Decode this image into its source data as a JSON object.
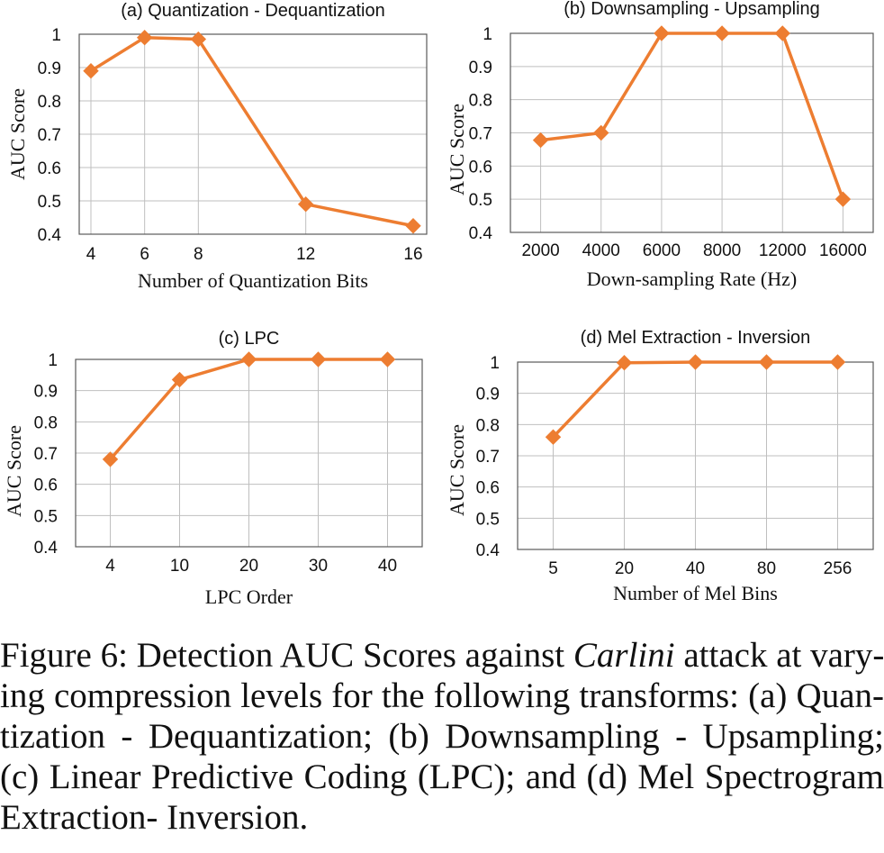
{
  "colors": {
    "series": "#ED7D31",
    "grid": "#BFBFBF",
    "axis": "#595959",
    "text": "#111111"
  },
  "chart_data": [
    {
      "type": "line",
      "title": "(a) Quantization - Dequantization",
      "xlabel": "Number of Quantization Bits",
      "ylabel": "AUC Score",
      "x": [
        4,
        6,
        8,
        12,
        16
      ],
      "x_scale": "numeric",
      "xlim": [
        4,
        16
      ],
      "y": [
        0.89,
        0.99,
        0.985,
        0.49,
        0.425
      ],
      "ylim": [
        0.4,
        1
      ],
      "yticks": [
        "0.4",
        "0.5",
        "0.6",
        "0.7",
        "0.8",
        "0.9",
        "1"
      ],
      "grid": "horizontal and vertical",
      "legend": "none"
    },
    {
      "type": "line",
      "title": "(b) Downsampling - Upsampling",
      "xlabel": "Down-sampling Rate (Hz)",
      "ylabel": "AUC Score",
      "categories": [
        "2000",
        "4000",
        "6000",
        "8000",
        "12000",
        "16000"
      ],
      "y": [
        0.678,
        0.7,
        1.0,
        1.0,
        1.0,
        0.5
      ],
      "ylim": [
        0.4,
        1
      ],
      "yticks": [
        "0.4",
        "0.5",
        "0.6",
        "0.7",
        "0.8",
        "0.9",
        "1"
      ],
      "grid": "horizontal and vertical",
      "legend": "none"
    },
    {
      "type": "line",
      "title": "(c) LPC",
      "xlabel": "LPC Order",
      "ylabel": "AUC Score",
      "categories": [
        "4",
        "10",
        "20",
        "30",
        "40"
      ],
      "y": [
        0.68,
        0.935,
        1.0,
        1.0,
        1.0
      ],
      "ylim": [
        0.4,
        1
      ],
      "yticks": [
        "0.4",
        "0.5",
        "0.6",
        "0.7",
        "0.8",
        "0.9",
        "1"
      ],
      "grid": "horizontal and vertical",
      "legend": "none"
    },
    {
      "type": "line",
      "title": "(d) Mel Extraction - Inversion",
      "xlabel": "Number of Mel Bins",
      "ylabel": "AUC Score",
      "categories": [
        "5",
        "20",
        "40",
        "80",
        "256"
      ],
      "y": [
        0.76,
        0.998,
        1.0,
        1.0,
        1.0
      ],
      "ylim": [
        0.4,
        1
      ],
      "yticks": [
        "0.4",
        "0.5",
        "0.6",
        "0.7",
        "0.8",
        "0.9",
        "1"
      ],
      "grid": "horizontal and vertical",
      "legend": "none"
    }
  ],
  "caption": {
    "line1": "Figure 6: Detection AUC Scores against ",
    "line1_em": "Carlini",
    "line1_rest": " attack at vary-",
    "line2": "ing compression levels for the following transforms: (a) Quan-",
    "line3": "tization - Dequantization; (b) Downsampling - Upsampling;",
    "line4": "(c) Linear Predictive Coding (LPC); and (d) Mel Spectrogram",
    "line5": "Extraction- Inversion."
  }
}
